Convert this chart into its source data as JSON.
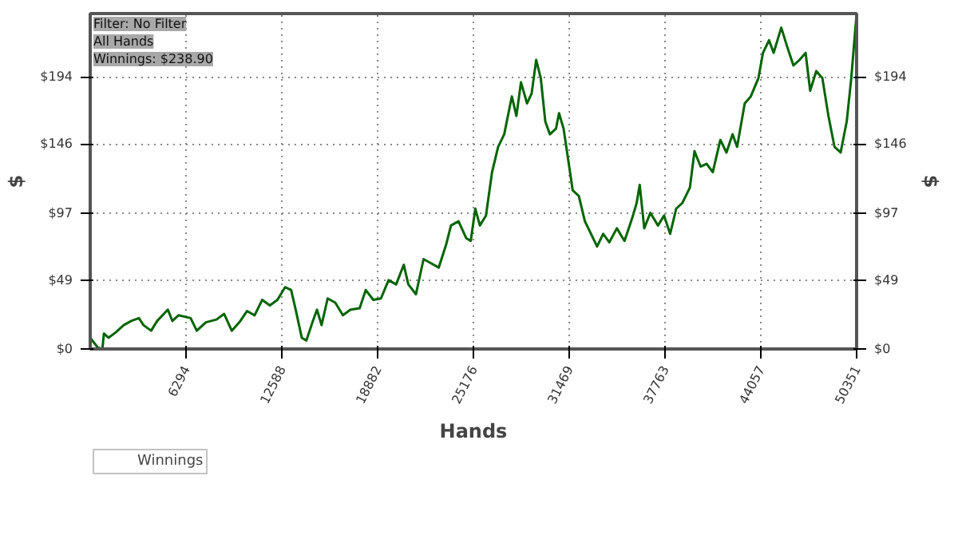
{
  "chart_data": {
    "type": "line",
    "xlabel": "Hands",
    "ylabel": "$",
    "y2label": "$",
    "annotations": [
      "Filter: No Filter",
      "All Hands",
      "Winnings: $238.90"
    ],
    "xlim": [
      0,
      50351
    ],
    "xticks": [
      6294,
      12588,
      18882,
      25176,
      31469,
      37763,
      44057,
      50351
    ],
    "ylim": [
      0,
      239
    ],
    "yticks": [
      {
        "value": 0,
        "label": "$0"
      },
      {
        "value": 49,
        "label": "$49"
      },
      {
        "value": 97,
        "label": "$97"
      },
      {
        "value": 146,
        "label": "$146"
      },
      {
        "value": 194,
        "label": "$194"
      }
    ],
    "y2lim": [
      0,
      239
    ],
    "y2ticks": [
      {
        "value": 0,
        "label": "$0"
      },
      {
        "value": 49,
        "label": "$49"
      },
      {
        "value": 97,
        "label": "$97"
      },
      {
        "value": 146,
        "label": "$146"
      },
      {
        "value": 194,
        "label": "$194"
      }
    ],
    "grid": true,
    "legend": "bottom left",
    "marker": "none",
    "line_style": "solid",
    "x": [
      0,
      500,
      800,
      900,
      1200,
      1700,
      2200,
      2700,
      3200,
      3500,
      4000,
      4400,
      5100,
      5400,
      5800,
      6600,
      7000,
      7600,
      8300,
      8800,
      9300,
      9800,
      10300,
      10800,
      11300,
      11800,
      12300,
      12800,
      13200,
      13500,
      13900,
      14200,
      14600,
      14900,
      15200,
      15600,
      16100,
      16600,
      17100,
      17700,
      18100,
      18600,
      19100,
      19600,
      20100,
      20600,
      20900,
      21400,
      21900,
      22400,
      22900,
      23400,
      23700,
      24200,
      24700,
      25000,
      25300,
      25600,
      26000,
      26400,
      26800,
      27200,
      27700,
      28000,
      28300,
      28700,
      29000,
      29300,
      29600,
      29900,
      30200,
      30600,
      30800,
      31100,
      31400,
      31700,
      32100,
      32500,
      32900,
      33300,
      33700,
      34100,
      34600,
      35100,
      35600,
      35900,
      36100,
      36400,
      36800,
      37300,
      37700,
      38100,
      38500,
      38900,
      39400,
      39700,
      40100,
      40500,
      40900,
      41400,
      41800,
      42200,
      42500,
      43000,
      43400,
      43900,
      44200,
      44600,
      44900,
      45400,
      45800,
      46200,
      46600,
      47000,
      47300,
      47700,
      48100,
      48500,
      48900,
      49300,
      49700,
      50000,
      50351
    ],
    "series": [
      {
        "name": "Winnings",
        "color": "#006400",
        "values": [
          8,
          1,
          0,
          11,
          8,
          12,
          17,
          20,
          22,
          17,
          13,
          20,
          28,
          20,
          24,
          22,
          13,
          19,
          21,
          25,
          13,
          19,
          27,
          24,
          35,
          31,
          35,
          44,
          42,
          28,
          8,
          6,
          19,
          28,
          17,
          36,
          33,
          24,
          28,
          29,
          42,
          35,
          36,
          49,
          46,
          60,
          46,
          39,
          64,
          61,
          58,
          75,
          88,
          91,
          79,
          77,
          100,
          88,
          95,
          126,
          144,
          153,
          180,
          166,
          190,
          175,
          182,
          206,
          193,
          162,
          153,
          157,
          168,
          157,
          135,
          113,
          109,
          91,
          82,
          73,
          82,
          76,
          86,
          77,
          93,
          104,
          117,
          86,
          97,
          88,
          95,
          82,
          100,
          104,
          115,
          141,
          130,
          132,
          126,
          149,
          140,
          153,
          144,
          175,
          180,
          193,
          211,
          220,
          211,
          229,
          215,
          202,
          206,
          211,
          184,
          198,
          193,
          166,
          144,
          140,
          162,
          193,
          239
        ]
      }
    ]
  }
}
